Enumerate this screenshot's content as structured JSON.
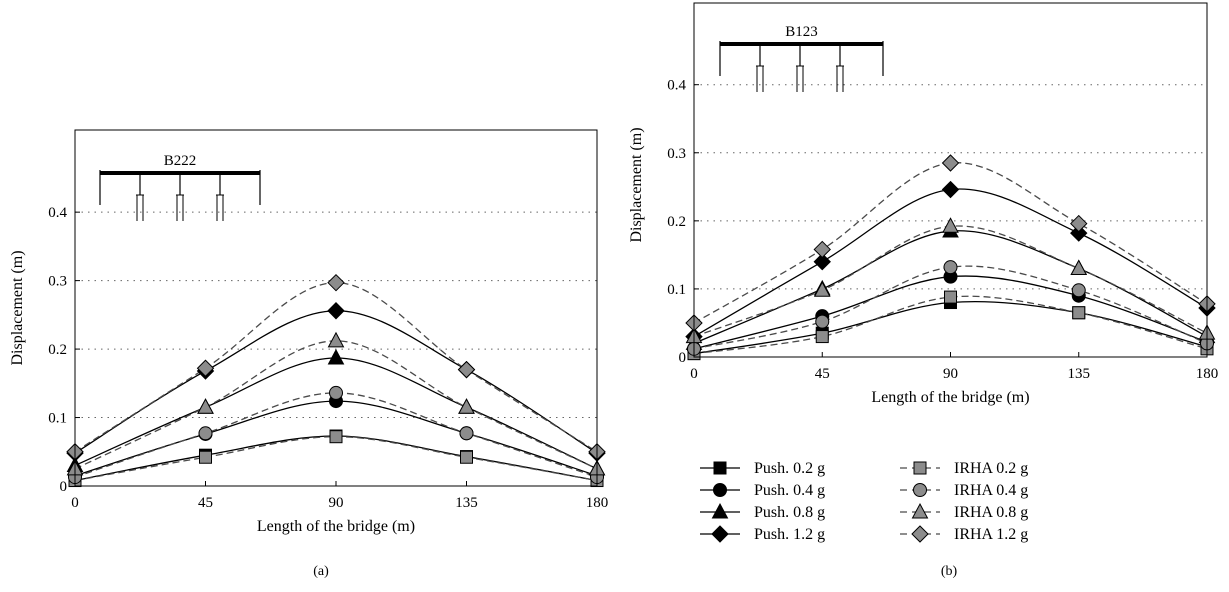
{
  "chart_data": [
    {
      "type": "line",
      "panel_label": "(a)",
      "bridge_label": "B222",
      "xlabel": "Length of the bridge (m)",
      "ylabel": "Displacement (m)",
      "x": [
        0,
        45,
        90,
        135,
        180
      ],
      "x_ticks": [
        "0",
        "45",
        "90",
        "135",
        "180"
      ],
      "y_ticks": [
        "0",
        "0.1",
        "0.2",
        "0.3",
        "0.4"
      ],
      "xlim": [
        0,
        180
      ],
      "ylim": [
        0,
        0.52
      ],
      "grid": "horizontal dotted",
      "series": [
        {
          "name": "Push. 0.2 g",
          "values": [
            0.008,
            0.045,
            0.073,
            0.043,
            0.008
          ]
        },
        {
          "name": "Push. 0.4 g",
          "values": [
            0.015,
            0.076,
            0.124,
            0.077,
            0.015
          ]
        },
        {
          "name": "Push. 0.8 g",
          "values": [
            0.03,
            0.115,
            0.187,
            0.115,
            0.025
          ]
        },
        {
          "name": "Push. 1.2 g",
          "values": [
            0.048,
            0.168,
            0.256,
            0.17,
            0.048
          ]
        },
        {
          "name": "IRHA 0.2 g",
          "values": [
            0.008,
            0.042,
            0.072,
            0.042,
            0.008
          ]
        },
        {
          "name": "IRHA 0.4 g",
          "values": [
            0.013,
            0.077,
            0.136,
            0.077,
            0.013
          ]
        },
        {
          "name": "IRHA 0.8 g",
          "values": [
            0.025,
            0.115,
            0.212,
            0.115,
            0.025
          ]
        },
        {
          "name": "IRHA 1.2 g",
          "values": [
            0.05,
            0.172,
            0.297,
            0.17,
            0.05
          ]
        }
      ]
    },
    {
      "type": "line",
      "panel_label": "(b)",
      "bridge_label": "B123",
      "xlabel": "Length of the bridge (m)",
      "ylabel": "Displacement (m)",
      "x": [
        0,
        45,
        90,
        135,
        180
      ],
      "x_ticks": [
        "0",
        "45",
        "90",
        "135",
        "180"
      ],
      "y_ticks": [
        "0",
        "0.1",
        "0.2",
        "0.3",
        "0.4"
      ],
      "xlim": [
        0,
        180
      ],
      "ylim": [
        0,
        0.52
      ],
      "grid": "horizontal dotted",
      "series": [
        {
          "name": "Push. 0.2 g",
          "values": [
            0.005,
            0.035,
            0.08,
            0.065,
            0.015
          ]
        },
        {
          "name": "Push. 0.4 g",
          "values": [
            0.012,
            0.06,
            0.118,
            0.09,
            0.022
          ]
        },
        {
          "name": "Push. 0.8 g",
          "values": [
            0.02,
            0.1,
            0.185,
            0.13,
            0.03
          ]
        },
        {
          "name": "Push. 1.2 g",
          "values": [
            0.03,
            0.14,
            0.246,
            0.182,
            0.072
          ]
        },
        {
          "name": "IRHA 0.2 g",
          "values": [
            0.005,
            0.03,
            0.088,
            0.065,
            0.012
          ]
        },
        {
          "name": "IRHA 0.4 g",
          "values": [
            0.012,
            0.052,
            0.132,
            0.098,
            0.02
          ]
        },
        {
          "name": "IRHA 0.8 g",
          "values": [
            0.03,
            0.098,
            0.192,
            0.13,
            0.035
          ]
        },
        {
          "name": "IRHA 1.2 g",
          "values": [
            0.05,
            0.158,
            0.285,
            0.196,
            0.078
          ]
        }
      ]
    }
  ],
  "legend": {
    "placement": "below panel (b)",
    "items": [
      {
        "name": "Push. 0.2 g",
        "marker": "square",
        "fill": "#000000",
        "line": "solid"
      },
      {
        "name": "IRHA 0.2 g",
        "marker": "square",
        "fill": "#8c8c8c",
        "line": "dashed"
      },
      {
        "name": "Push. 0.4 g",
        "marker": "circle",
        "fill": "#000000",
        "line": "solid"
      },
      {
        "name": "IRHA 0.4 g",
        "marker": "circle",
        "fill": "#8c8c8c",
        "line": "dashed"
      },
      {
        "name": "Push. 0.8 g",
        "marker": "triangle",
        "fill": "#000000",
        "line": "solid"
      },
      {
        "name": "IRHA 0.8 g",
        "marker": "triangle",
        "fill": "#8c8c8c",
        "line": "dashed"
      },
      {
        "name": "Push. 1.2 g",
        "marker": "diamond",
        "fill": "#000000",
        "line": "solid"
      },
      {
        "name": "IRHA 1.2 g",
        "marker": "diamond",
        "fill": "#8c8c8c",
        "line": "dashed"
      }
    ]
  },
  "colors": {
    "push_marker": "#000000",
    "irha_marker": "#8c8c8c",
    "irha_stroke": "#4a4a4a"
  }
}
